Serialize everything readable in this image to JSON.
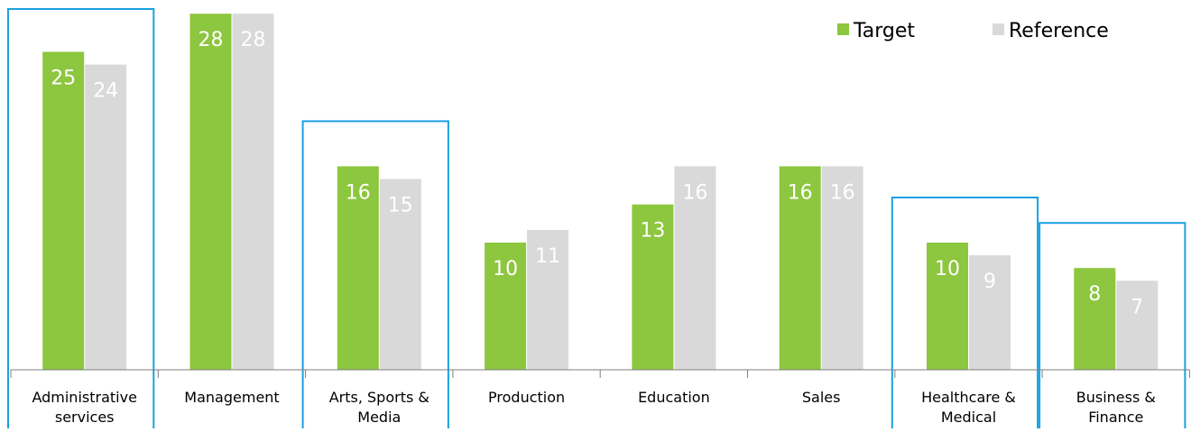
{
  "chart_data": {
    "type": "bar",
    "categories": [
      [
        "Administrative",
        "services"
      ],
      [
        "Management"
      ],
      [
        "Arts, Sports &",
        "Media"
      ],
      [
        "Production"
      ],
      [
        "Education"
      ],
      [
        "Sales"
      ],
      [
        "Healthcare &",
        "Medical"
      ],
      [
        "Business &",
        "Finance"
      ]
    ],
    "series": [
      {
        "name": "Target",
        "values": [
          25,
          28,
          16,
          10,
          13,
          16,
          10,
          8
        ],
        "color": "#8dc63f"
      },
      {
        "name": "Reference",
        "values": [
          24,
          28,
          15,
          11,
          16,
          16,
          9,
          7
        ],
        "color": "#d9d9d9"
      }
    ],
    "highlighted_categories": [
      0,
      2,
      6,
      7
    ],
    "highlight_color": "#1ba1e2",
    "data_label_color": "#ffffff",
    "axis_color": "#7f7f7f",
    "category_label_color": "#000000",
    "ylim": [
      0,
      28
    ],
    "grid": false,
    "legend_position": "top-right"
  }
}
